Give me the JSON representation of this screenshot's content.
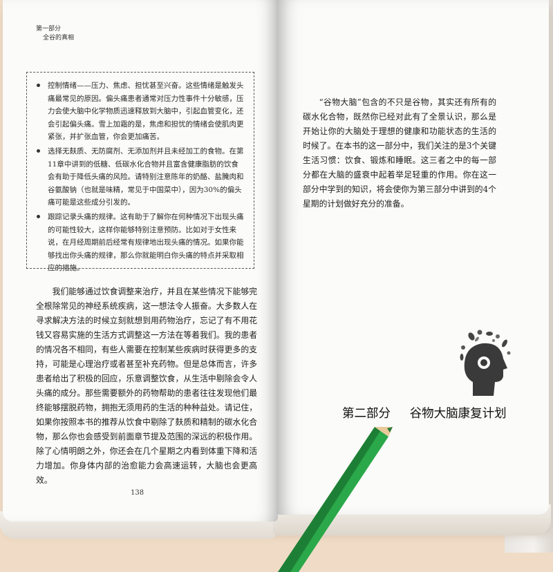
{
  "left_page": {
    "running_head": {
      "part": "第一部分",
      "title": "全谷的真相"
    },
    "box_items": [
      "控制情绪——压力、焦虑、担忧甚至兴奋。这些情绪是触发头痛最常见的原因。偏头痛患者通常对压力性事件十分敏感，压力会使大脑中化学物质迅速释放到大脑中，引起血管变化，还会引起偏头痛。雪上加霜的是，焦虑和担忧的情绪会使肌肉更紧张，并扩张血管，你会更加痛苦。",
      "选择无麸质、无防腐剂、无添加剂并且未经加工的食物。在第11章中讲到的低糖、低碳水化合物并且富含健康脂肪的饮食会有助于降低头痛的风险。请特别注意陈年的奶酪、盐腌肉和谷氨酸钠（也就是味精，常见于中国菜中），因为30%的偏头痛可能是这些成分引发的。",
      "跟踪记录头痛的规律。这有助于了解你在何种情况下出现头痛的可能性较大，这样你能够特别注意预防。比如对于女性来说，在月经周期前后经常有规律地出现头痛的情况。如果你能够找出你头痛的规律，那么你就能明白你头痛的特点并采取相应的措施。"
    ],
    "body": "我们能够通过饮食调整来治疗，并且在某些情况下能够完全根除常见的神经系统疾病，这一想法令人振奋。大多数人在寻求解决方法的时候立刻就想到用药物治疗，忘记了有不用花钱又容易实施的生活方式调整这一方法在等着我们。我的患者的情况各不相同，有些人需要在控制某些疾病时获得更多的支持，可能是心理治疗或者甚至补充药物。但是总体而言，许多患者给出了积极的回应，乐意调整饮食，从生活中剔除会令人头痛的成分。那些需要额外的药物帮助的患者往往发现他们最终能够摆脱药物，拥抱无须用药的生活的种种益处。请记住，如果你按照本书的推荐从饮食中剔除了麸质和精制的碳水化合物，那么你也会感受到前面章节提及范围的深远的积极作用。除了心情明朗之外，你还会在几个星期之内看到体重下降和活力增加。你身体内部的治愈能力会高速运转，大脑也会更高效。",
    "page_number": "138"
  },
  "right_page": {
    "intro": "“谷物大脑”包含的不只是谷物，其实还有所有的碳水化合物，既然你已经对此有了全景认识，那么是开始让你的大脑处于理想的健康和功能状态的生活的时候了。在本书的这一部分中，我们关注的是3个关键生活习惯：饮食、锻炼和睡眠。这三者之中的每一部分都在大脑的盛衰中起着举足轻重的作用。你在这一部分中学到的知识，将会使你为第三部分中讲到的4个星期的计划做好充分的准备。",
    "part_label": "第二部分",
    "part_title": "谷物大脑康复计划"
  },
  "colors": {
    "pencil_body": "#2aa84a",
    "pencil_dark": "#1d7f35",
    "wood": "#e9c99a",
    "background": "#f0dcc6"
  }
}
